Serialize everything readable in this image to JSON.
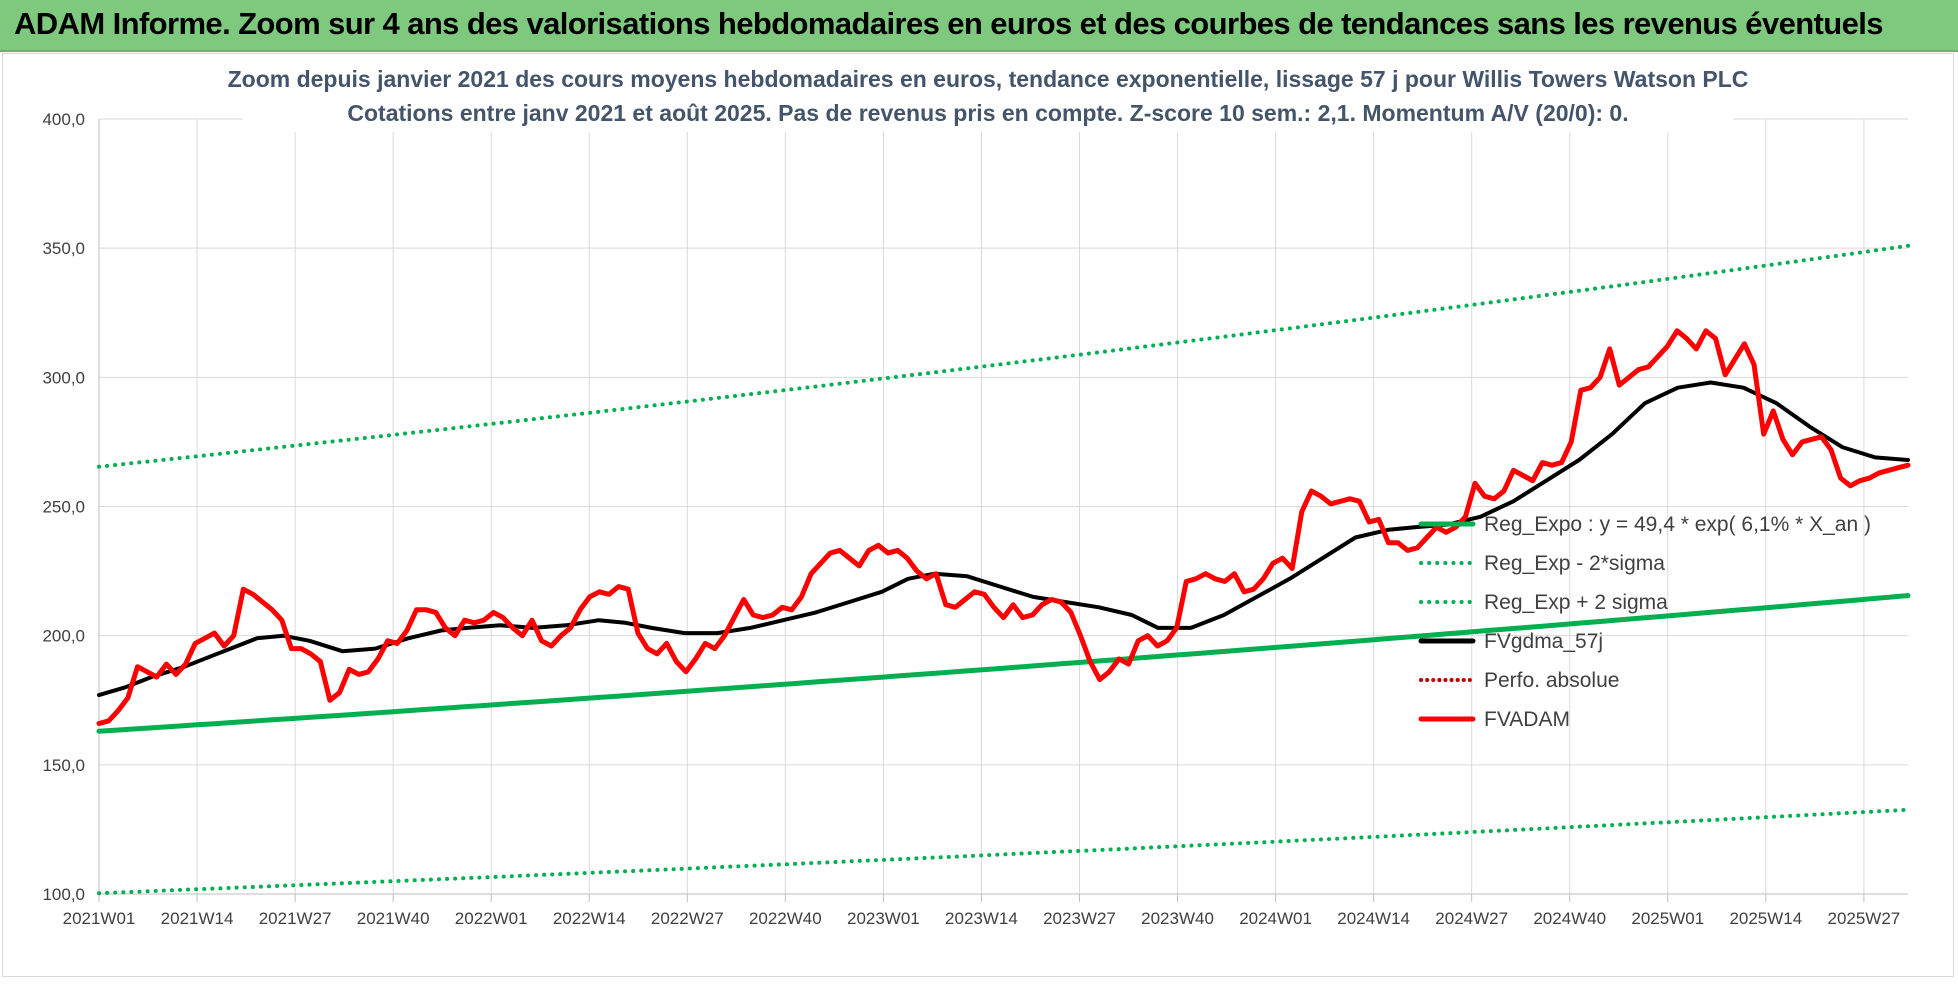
{
  "banner": {
    "title": "ADAM Informe. Zoom sur 4 ans des valorisations hebdomadaires en euros et des courbes de tendances sans les revenus éventuels"
  },
  "colors": {
    "banner_bg": "#7fc97f",
    "regression": "#00b050",
    "price": "#ff0000",
    "moving_average": "#000000",
    "perf_absolue": "#c00000"
  },
  "chart_data": {
    "type": "line",
    "title_lines": [
      "Zoom depuis janvier 2021 des cours moyens hebdomadaires en euros, tendance exponentielle, lissage 57 j pour Willis Towers Watson PLC",
      "Cotations entre janv 2021 et août 2025.  Pas de revenus pris en compte. Z-score 10 sem.: 2,1. Momentum A/V (20/0): 0."
    ],
    "ylim": [
      100,
      400
    ],
    "y_ticks": [
      "100,0",
      "150,0",
      "200,0",
      "250,0",
      "300,0",
      "350,0",
      "400,0"
    ],
    "x_ticks": [
      "2021W01",
      "2021W14",
      "2021W27",
      "2021W40",
      "2022W01",
      "2022W14",
      "2022W27",
      "2022W40",
      "2023W01",
      "2023W14",
      "2023W27",
      "2023W40",
      "2024W01",
      "2024W14",
      "2024W27",
      "2024W40",
      "2025W01",
      "2025W14",
      "2025W27"
    ],
    "weeks_between_ticks": 13,
    "total_weeks": 240,
    "grid": true,
    "legend_position": "bottom-right",
    "regression": {
      "a": 49.4,
      "rate": 0.061,
      "sigma_factor_low": 0.615,
      "sigma_factor_high": 1.628
    },
    "series": [
      {
        "name": "Reg_Expo : y = 49,4 * exp( 6,1% *  X_an )",
        "style": "solid",
        "color": "#00b050",
        "width": 5,
        "start": 163.0,
        "end": 215.5
      },
      {
        "name": "Reg_Exp - 2*sigma",
        "style": "dotted",
        "color": "#00b050",
        "width": 4,
        "start": 100.3,
        "end": 132.6
      },
      {
        "name": "Reg_Exp + 2 sigma",
        "style": "dotted",
        "color": "#00b050",
        "width": 4,
        "start": 265.4,
        "end": 350.9
      },
      {
        "name": "FVgdma_57j",
        "style": "solid",
        "color": "#000000",
        "width": 4,
        "points": [
          [
            0,
            177
          ],
          [
            4,
            180
          ],
          [
            8,
            184
          ],
          [
            13,
            188
          ],
          [
            17,
            192
          ],
          [
            20,
            195
          ],
          [
            24,
            199
          ],
          [
            28,
            200
          ],
          [
            32,
            198
          ],
          [
            37,
            194
          ],
          [
            42,
            195
          ],
          [
            47,
            199
          ],
          [
            52,
            202
          ],
          [
            56,
            203
          ],
          [
            61,
            204
          ],
          [
            66,
            203
          ],
          [
            71,
            204
          ],
          [
            76,
            206
          ],
          [
            80,
            205
          ],
          [
            84,
            203
          ],
          [
            89,
            201
          ],
          [
            94,
            201
          ],
          [
            99,
            203
          ],
          [
            104,
            206
          ],
          [
            109,
            209
          ],
          [
            114,
            213
          ],
          [
            119,
            217
          ],
          [
            123,
            222
          ],
          [
            127,
            224
          ],
          [
            132,
            223
          ],
          [
            137,
            219
          ],
          [
            142,
            215
          ],
          [
            147,
            213
          ],
          [
            152,
            211
          ],
          [
            157,
            208
          ],
          [
            161,
            203
          ],
          [
            166,
            203
          ],
          [
            171,
            208
          ],
          [
            176,
            215
          ],
          [
            181,
            222
          ],
          [
            186,
            230
          ],
          [
            191,
            238
          ],
          [
            196,
            241
          ],
          [
            200,
            242
          ],
          [
            205,
            243
          ],
          [
            210,
            246
          ],
          [
            215,
            252
          ],
          [
            220,
            260
          ],
          [
            225,
            268
          ],
          [
            230,
            278
          ],
          [
            235,
            290
          ],
          [
            240,
            296
          ],
          [
            245,
            298
          ],
          [
            250,
            296
          ],
          [
            255,
            290
          ],
          [
            260,
            281
          ],
          [
            265,
            273
          ],
          [
            270,
            269
          ],
          [
            275,
            268
          ]
        ]
      },
      {
        "name": "Perfo. absolue",
        "style": "dotted",
        "color": "#c00000",
        "width": 3
      },
      {
        "name": "FVADAM",
        "style": "solid",
        "color": "#ff0000",
        "width": 5,
        "points": [
          [
            0,
            166
          ],
          [
            2,
            167
          ],
          [
            4,
            171
          ],
          [
            6,
            176
          ],
          [
            8,
            188
          ],
          [
            10,
            186
          ],
          [
            12,
            184
          ],
          [
            14,
            189
          ],
          [
            16,
            185
          ],
          [
            18,
            189
          ],
          [
            20,
            197
          ],
          [
            22,
            199
          ],
          [
            24,
            201
          ],
          [
            26,
            196
          ],
          [
            28,
            200
          ],
          [
            30,
            218
          ],
          [
            32,
            216
          ],
          [
            34,
            213
          ],
          [
            36,
            210
          ],
          [
            38,
            206
          ],
          [
            40,
            195
          ],
          [
            42,
            195
          ],
          [
            44,
            193
          ],
          [
            46,
            190
          ],
          [
            48,
            175
          ],
          [
            50,
            178
          ],
          [
            52,
            187
          ],
          [
            54,
            185
          ],
          [
            56,
            186
          ],
          [
            58,
            191
          ],
          [
            60,
            198
          ],
          [
            62,
            197
          ],
          [
            64,
            202
          ],
          [
            66,
            210
          ],
          [
            68,
            210
          ],
          [
            70,
            209
          ],
          [
            72,
            203
          ],
          [
            74,
            200
          ],
          [
            76,
            206
          ],
          [
            78,
            205
          ],
          [
            80,
            206
          ],
          [
            82,
            209
          ],
          [
            84,
            207
          ],
          [
            86,
            203
          ],
          [
            88,
            200
          ],
          [
            90,
            206
          ],
          [
            92,
            198
          ],
          [
            94,
            196
          ],
          [
            96,
            200
          ],
          [
            98,
            203
          ],
          [
            100,
            210
          ],
          [
            102,
            215
          ],
          [
            104,
            217
          ],
          [
            106,
            216
          ],
          [
            108,
            219
          ],
          [
            110,
            218
          ],
          [
            112,
            201
          ],
          [
            114,
            195
          ],
          [
            116,
            193
          ],
          [
            118,
            197
          ],
          [
            120,
            190
          ],
          [
            122,
            186
          ],
          [
            124,
            191
          ],
          [
            126,
            197
          ],
          [
            128,
            195
          ],
          [
            130,
            200
          ],
          [
            132,
            207
          ],
          [
            134,
            214
          ],
          [
            136,
            208
          ],
          [
            138,
            207
          ],
          [
            140,
            208
          ],
          [
            142,
            211
          ],
          [
            144,
            210
          ],
          [
            146,
            215
          ],
          [
            148,
            224
          ],
          [
            150,
            228
          ],
          [
            152,
            232
          ],
          [
            154,
            233
          ],
          [
            156,
            230
          ],
          [
            158,
            227
          ],
          [
            160,
            233
          ],
          [
            162,
            235
          ],
          [
            164,
            232
          ],
          [
            166,
            233
          ],
          [
            168,
            230
          ],
          [
            170,
            225
          ],
          [
            172,
            222
          ],
          [
            174,
            224
          ],
          [
            176,
            212
          ],
          [
            178,
            211
          ],
          [
            180,
            214
          ],
          [
            182,
            217
          ],
          [
            184,
            216
          ],
          [
            186,
            211
          ],
          [
            188,
            207
          ],
          [
            190,
            212
          ],
          [
            192,
            207
          ],
          [
            194,
            208
          ],
          [
            196,
            212
          ],
          [
            198,
            214
          ],
          [
            200,
            213
          ],
          [
            202,
            209
          ],
          [
            204,
            200
          ],
          [
            206,
            190
          ],
          [
            208,
            183
          ],
          [
            210,
            186
          ],
          [
            212,
            191
          ],
          [
            214,
            189
          ],
          [
            216,
            198
          ],
          [
            218,
            200
          ],
          [
            220,
            196
          ],
          [
            222,
            198
          ],
          [
            224,
            203
          ],
          [
            226,
            221
          ],
          [
            228,
            222
          ],
          [
            230,
            224
          ],
          [
            232,
            222
          ],
          [
            234,
            221
          ],
          [
            236,
            224
          ],
          [
            238,
            217
          ],
          [
            240,
            218
          ],
          [
            242,
            222
          ],
          [
            244,
            228
          ],
          [
            246,
            230
          ],
          [
            248,
            226
          ],
          [
            250,
            248
          ],
          [
            252,
            256
          ],
          [
            254,
            254
          ],
          [
            256,
            251
          ],
          [
            258,
            252
          ],
          [
            260,
            253
          ],
          [
            262,
            252
          ],
          [
            264,
            244
          ],
          [
            266,
            245
          ],
          [
            268,
            236
          ],
          [
            270,
            236
          ],
          [
            272,
            233
          ],
          [
            274,
            234
          ],
          [
            276,
            238
          ],
          [
            278,
            242
          ],
          [
            280,
            240
          ],
          [
            282,
            242
          ],
          [
            284,
            246
          ],
          [
            286,
            259
          ],
          [
            288,
            254
          ],
          [
            290,
            253
          ],
          [
            292,
            256
          ],
          [
            294,
            264
          ],
          [
            296,
            262
          ],
          [
            298,
            260
          ],
          [
            300,
            267
          ],
          [
            302,
            266
          ],
          [
            304,
            267
          ],
          [
            306,
            275
          ],
          [
            308,
            295
          ],
          [
            310,
            296
          ],
          [
            312,
            300
          ],
          [
            314,
            311
          ],
          [
            316,
            297
          ],
          [
            318,
            300
          ],
          [
            320,
            303
          ],
          [
            322,
            304
          ],
          [
            324,
            308
          ],
          [
            326,
            312
          ],
          [
            328,
            318
          ],
          [
            330,
            315
          ],
          [
            332,
            311
          ],
          [
            334,
            318
          ],
          [
            336,
            315
          ],
          [
            338,
            301
          ],
          [
            340,
            307
          ],
          [
            342,
            313
          ],
          [
            344,
            305
          ],
          [
            346,
            278
          ],
          [
            348,
            287
          ],
          [
            350,
            276
          ],
          [
            352,
            270
          ],
          [
            354,
            275
          ],
          [
            356,
            276
          ],
          [
            358,
            277
          ],
          [
            360,
            272
          ],
          [
            362,
            261
          ],
          [
            364,
            258
          ],
          [
            366,
            260
          ],
          [
            368,
            261
          ],
          [
            370,
            263
          ],
          [
            372,
            264
          ],
          [
            374,
            265
          ],
          [
            376,
            266
          ]
        ]
      }
    ]
  }
}
